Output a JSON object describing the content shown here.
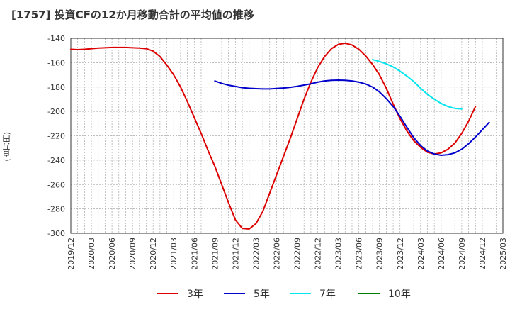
{
  "chart_data": {
    "type": "line",
    "title": "[1757]  投資CFの12か月移動合計の平均値の推移",
    "ylabel": "(百万円)",
    "xlabel": "",
    "ylim": [
      -300,
      -140
    ],
    "yticks": [
      -140,
      -160,
      -180,
      -200,
      -220,
      -240,
      -260,
      -280,
      -300
    ],
    "xticks": [
      "2019/12",
      "2020/03",
      "2020/06",
      "2020/09",
      "2020/12",
      "2021/03",
      "2021/06",
      "2021/09",
      "2021/12",
      "2022/03",
      "2022/06",
      "2022/09",
      "2022/12",
      "2023/03",
      "2023/06",
      "2023/09",
      "2023/12",
      "2024/03",
      "2024/06",
      "2024/09",
      "2024/12",
      "2025/03"
    ],
    "grid": true,
    "legend_position": "bottom",
    "colors": {
      "s3": "#dd0000",
      "s5": "#0000cc",
      "s7": "#00e5ee",
      "s10": "#008000"
    },
    "series": [
      {
        "name": "3年",
        "color": "#dd0000",
        "start": "2019/12",
        "values": [
          -149,
          -149.3,
          -149,
          -148.5,
          -148,
          -147.8,
          -147.5,
          -147.5,
          -147.5,
          -147.8,
          -148,
          -148.5,
          -150.5,
          -155,
          -162,
          -170,
          -180,
          -192,
          -205,
          -218,
          -232,
          -245,
          -260,
          -275,
          -289,
          -296,
          -296.5,
          -292,
          -282,
          -267,
          -252,
          -237,
          -222,
          -206,
          -190,
          -176,
          -164,
          -155,
          -148.5,
          -145,
          -144,
          -145.5,
          -149,
          -154.5,
          -161.5,
          -170,
          -181,
          -194,
          -206,
          -216,
          -224,
          -229.5,
          -233.5,
          -235,
          -234,
          -231,
          -226,
          -218,
          -208,
          -196
        ]
      },
      {
        "name": "5年",
        "color": "#0000cc",
        "start": "2021/09",
        "values": [
          -175,
          -177,
          -178.5,
          -179.5,
          -180.5,
          -181,
          -181.3,
          -181.5,
          -181.5,
          -181.2,
          -180.8,
          -180.2,
          -179.4,
          -178.4,
          -177.3,
          -176,
          -175,
          -174.5,
          -174.3,
          -174.5,
          -175,
          -176,
          -177.5,
          -180,
          -184,
          -189.5,
          -196,
          -204,
          -213,
          -221.5,
          -228,
          -232.5,
          -235,
          -236,
          -235.5,
          -234,
          -231,
          -226.5,
          -221,
          -215,
          -209
        ]
      },
      {
        "name": "7年",
        "color": "#00e5ee",
        "start": "2023/08",
        "values": [
          -157.5,
          -159,
          -161,
          -163.5,
          -167,
          -171,
          -175.5,
          -181,
          -186,
          -190,
          -193.5,
          -196,
          -197.5,
          -198
        ]
      },
      {
        "name": "10年",
        "color": "#008000",
        "start": "2023/08",
        "values": []
      }
    ]
  }
}
